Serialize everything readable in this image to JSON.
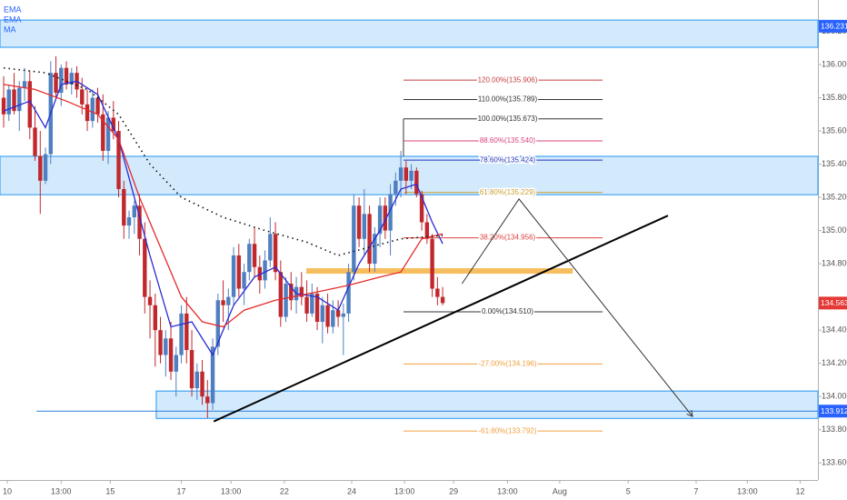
{
  "chart_data": {
    "type": "candlestick",
    "ylim": [
      133.497,
      136.389
    ],
    "xlim": [
      -0.7,
      155.8
    ],
    "yticks": [
      {
        "value": 133.6,
        "label": "133.600"
      },
      {
        "value": 133.8,
        "label": "133.800"
      },
      {
        "value": 134.0,
        "label": "134.000"
      },
      {
        "value": 134.2,
        "label": "134.200"
      },
      {
        "value": 134.4,
        "label": "134.400"
      },
      {
        "value": 134.8,
        "label": "134.800"
      },
      {
        "value": 135.0,
        "label": "135.000"
      },
      {
        "value": 135.2,
        "label": "135.200"
      },
      {
        "value": 135.4,
        "label": "135.400"
      },
      {
        "value": 135.6,
        "label": "135.600"
      },
      {
        "value": 135.8,
        "label": "135.800"
      },
      {
        "value": 136.0,
        "label": "136.000"
      },
      {
        "value": 136.2,
        "label": "136.200"
      }
    ],
    "xticks": [
      {
        "value": 0.7,
        "label": "10"
      },
      {
        "value": 11,
        "label": "13:00"
      },
      {
        "value": 20.4,
        "label": "15"
      },
      {
        "value": 34,
        "label": "17"
      },
      {
        "value": 43.5,
        "label": "13:00"
      },
      {
        "value": 53.7,
        "label": "22"
      },
      {
        "value": 66.6,
        "label": "24"
      },
      {
        "value": 76.7,
        "label": "13:00"
      },
      {
        "value": 86.1,
        "label": "29"
      },
      {
        "value": 96.4,
        "label": "13:00"
      },
      {
        "value": 106.4,
        "label": "Aug"
      },
      {
        "value": 119.5,
        "label": "5"
      },
      {
        "value": 132.5,
        "label": "7"
      },
      {
        "value": 142.3,
        "label": "13:00"
      },
      {
        "value": 152.4,
        "label": "12"
      }
    ],
    "up_color": "#4f7fc0",
    "down_color": "#c0282d",
    "open": [
      135.8,
      135.7,
      135.85,
      135.72,
      135.86,
      135.9,
      135.62,
      135.45,
      135.3,
      135.46,
      135.95,
      135.83,
      135.98,
      135.88,
      135.95,
      135.85,
      135.76,
      135.66,
      135.8,
      135.7,
      135.48,
      135.68,
      135.6,
      135.25,
      135.03,
      135.08,
      135.15,
      134.95,
      134.6,
      134.55,
      134.4,
      134.25,
      134.35,
      134.15,
      134.25,
      134.5,
      134.28,
      134.05,
      134.15,
      134.0,
      133.96,
      134.3,
      134.58,
      134.55,
      134.6,
      134.85,
      134.65,
      134.75,
      134.92,
      134.78,
      134.7,
      134.82,
      134.98,
      134.75,
      134.48,
      134.68,
      134.58,
      134.66,
      134.6,
      134.5,
      134.62,
      134.45,
      134.55,
      134.42,
      134.52,
      134.48,
      134.5,
      134.75,
      135.15,
      134.95,
      135.1,
      134.8,
      134.98,
      135.15,
      135.0,
      135.22,
      135.3,
      135.38,
      135.3,
      135.36,
      135.22,
      135.05,
      134.95,
      134.65,
      134.6
    ],
    "high": [
      135.93,
      135.88,
      135.95,
      135.9,
      135.98,
      135.96,
      135.75,
      135.6,
      135.5,
      136.02,
      136.05,
      136.0,
      136.02,
      135.98,
      135.99,
      135.92,
      135.85,
      135.85,
      135.86,
      135.82,
      135.72,
      135.78,
      135.66,
      135.3,
      135.12,
      135.18,
      135.22,
      135.05,
      134.7,
      134.62,
      134.48,
      134.4,
      134.45,
      134.3,
      134.55,
      134.6,
      134.4,
      134.2,
      134.22,
      134.1,
      134.35,
      134.62,
      134.7,
      134.65,
      134.9,
      134.92,
      134.8,
      134.95,
      135.02,
      134.85,
      134.88,
      135.08,
      135.05,
      134.82,
      134.72,
      134.75,
      134.72,
      134.75,
      134.7,
      134.68,
      134.66,
      134.6,
      134.62,
      134.58,
      134.58,
      134.56,
      134.8,
      135.22,
      135.2,
      135.25,
      135.15,
      135.02,
      135.2,
      135.2,
      135.28,
      135.35,
      135.48,
      135.42,
      135.4,
      135.38,
      135.24,
      135.1,
      134.98,
      134.72,
      134.66
    ],
    "low": [
      135.62,
      135.66,
      135.7,
      135.6,
      135.78,
      135.55,
      135.42,
      135.1,
      135.28,
      135.4,
      135.8,
      135.75,
      135.85,
      135.82,
      135.8,
      135.7,
      135.6,
      135.62,
      135.65,
      135.42,
      135.4,
      135.55,
      135.2,
      134.95,
      134.95,
      134.98,
      134.85,
      134.5,
      134.35,
      134.18,
      134.2,
      134.12,
      134.1,
      134.0,
      134.2,
      134.2,
      134.0,
      133.98,
      133.95,
      133.87,
      133.92,
      134.25,
      134.45,
      134.4,
      134.55,
      134.6,
      134.55,
      134.7,
      134.72,
      134.62,
      134.65,
      134.78,
      134.7,
      134.42,
      134.45,
      134.52,
      134.5,
      134.55,
      134.45,
      134.48,
      134.4,
      134.32,
      134.38,
      134.38,
      134.42,
      134.25,
      134.45,
      134.7,
      134.9,
      134.85,
      134.75,
      134.75,
      134.9,
      134.95,
      134.85,
      135.15,
      135.2,
      135.22,
      135.25,
      135.2,
      135.0,
      134.92,
      134.6,
      134.55,
      134.55
    ],
    "close": [
      135.7,
      135.85,
      135.72,
      135.86,
      135.9,
      135.62,
      135.45,
      135.3,
      135.46,
      135.95,
      135.83,
      135.98,
      135.88,
      135.95,
      135.85,
      135.76,
      135.66,
      135.8,
      135.7,
      135.48,
      135.68,
      135.6,
      135.25,
      135.03,
      135.08,
      135.15,
      134.95,
      134.6,
      134.55,
      134.4,
      134.25,
      134.35,
      134.15,
      134.25,
      134.5,
      134.28,
      134.05,
      134.15,
      134.0,
      133.96,
      134.3,
      134.58,
      134.55,
      134.6,
      134.85,
      134.65,
      134.75,
      134.92,
      134.78,
      134.7,
      134.82,
      134.98,
      134.75,
      134.48,
      134.68,
      134.58,
      134.66,
      134.6,
      134.5,
      134.62,
      134.45,
      134.55,
      134.42,
      134.52,
      134.48,
      134.5,
      134.75,
      135.15,
      134.95,
      135.1,
      134.8,
      134.98,
      135.15,
      135.0,
      135.22,
      135.3,
      135.38,
      135.3,
      135.36,
      135.22,
      135.05,
      134.95,
      134.65,
      134.6,
      134.563
    ],
    "series": [
      {
        "name": "EMA",
        "color": "#2a2ad0",
        "x": [
          0,
          5,
          8,
          11,
          14,
          18,
          22,
          25,
          28,
          32,
          36,
          40,
          44,
          48,
          52,
          56,
          60,
          64,
          68,
          72,
          76,
          79,
          82,
          84
        ],
        "values": [
          135.72,
          135.78,
          135.62,
          135.88,
          135.9,
          135.82,
          135.55,
          135.2,
          134.85,
          134.42,
          134.45,
          134.25,
          134.55,
          134.72,
          134.78,
          134.62,
          134.6,
          134.52,
          134.8,
          135.0,
          135.25,
          135.28,
          135.05,
          134.92
        ]
      },
      {
        "name": "EMA",
        "color": "#e52b2b",
        "x": [
          0,
          6,
          12,
          18,
          22,
          26,
          30,
          34,
          38,
          42,
          46,
          52,
          60,
          66,
          72,
          76,
          80,
          84
        ],
        "values": [
          135.88,
          135.85,
          135.78,
          135.7,
          135.55,
          135.2,
          134.9,
          134.6,
          134.45,
          134.42,
          134.52,
          134.58,
          134.63,
          134.67,
          134.72,
          134.75,
          134.95,
          134.98
        ]
      },
      {
        "name": "MA",
        "color": "#111111",
        "x": [
          0,
          8,
          16,
          22,
          28,
          34,
          42,
          50,
          58,
          64,
          70,
          76,
          84
        ],
        "values": [
          135.98,
          135.95,
          135.85,
          135.7,
          135.4,
          135.2,
          135.08,
          135.0,
          134.93,
          134.85,
          134.9,
          134.95,
          134.97
        ]
      }
    ],
    "zones": [
      {
        "xlim": [
          -0.7,
          155.8
        ],
        "ylim": [
          136.104,
          136.268
        ]
      },
      {
        "xlim": [
          -0.7,
          155.8
        ],
        "ylim": [
          135.216,
          135.447
        ]
      },
      {
        "xlim": [
          29.2,
          155.8
        ],
        "ylim": [
          133.868,
          134.033
        ]
      }
    ],
    "order_block": {
      "xlim": [
        57.9,
        108.9
      ],
      "ylim": [
        134.74,
        134.773
      ],
      "color": "#f5b342"
    },
    "fib_xlim": [
      76.5,
      114.6
    ],
    "fib_levels": [
      {
        "label": "120.00%(135.906)",
        "value": 135.906,
        "color": "#c94040"
      },
      {
        "label": "110.00%(135.789)",
        "value": 135.789,
        "color": "#333333"
      },
      {
        "label": "100.00%(135.673)",
        "value": 135.673,
        "color": "#333333"
      },
      {
        "label": "88.60%(135.540)",
        "value": 135.54,
        "color": "#d9457f"
      },
      {
        "label": "78.60%(135.424)",
        "value": 135.424,
        "color": "#2336b8"
      },
      {
        "label": "61.80%(135.229)",
        "value": 135.229,
        "color": "#c8a030"
      },
      {
        "label": "38.20%(134.956)",
        "value": 134.956,
        "color": "#e04040"
      },
      {
        "label": "0.00%(134.510)",
        "value": 134.51,
        "color": "#333333"
      },
      {
        "label": "-27.00%(134.196)",
        "value": 134.196,
        "color": "#f0a040"
      },
      {
        "label": "-61.80%(133.792)",
        "value": 133.792,
        "color": "#f0a040"
      }
    ],
    "trendline": {
      "x": [
        40.2,
        127.1
      ],
      "values": [
        133.85,
        135.09
      ]
    },
    "projection": {
      "x": [
        87.7,
        98.6,
        131.8
      ],
      "values": [
        134.68,
        135.19,
        133.88
      ]
    },
    "support_line": {
      "x": [
        6.3,
        155.8
      ],
      "values": [
        133.912,
        133.912
      ]
    },
    "price_tags": [
      {
        "value": 136.231,
        "color": "#2962ff"
      },
      {
        "value": 134.563,
        "color": "#e53935"
      },
      {
        "value": 133.912,
        "color": "#2962ff"
      }
    ]
  }
}
